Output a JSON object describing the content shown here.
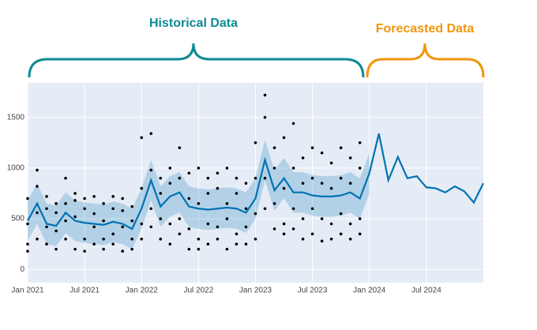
{
  "chart_data": {
    "type": "line",
    "annotations": [
      {
        "text": "Historical Data",
        "color": "#0e8a94"
      },
      {
        "text": "Forecasted Data",
        "color": "#f0960e"
      }
    ],
    "xlim": [
      "2021-01",
      "2025-01"
    ],
    "ylim": [
      -130,
      1840
    ],
    "xticks": [
      {
        "value": "2021-01",
        "label": "Jan 2021"
      },
      {
        "value": "2021-07",
        "label": "Jul 2021"
      },
      {
        "value": "2022-01",
        "label": "Jan 2022"
      },
      {
        "value": "2022-07",
        "label": "Jul 2022"
      },
      {
        "value": "2023-01",
        "label": "Jan 2023"
      },
      {
        "value": "2023-07",
        "label": "Jul 2023"
      },
      {
        "value": "2024-01",
        "label": "Jan 2024"
      },
      {
        "value": "2024-07",
        "label": "Jul 2024"
      }
    ],
    "yticks": [
      0,
      500,
      1000,
      1500
    ],
    "grid": true,
    "points_color": "#000000",
    "points": [
      {
        "x": "2021-01",
        "values": [
          250,
          700,
          450,
          180
        ]
      },
      {
        "x": "2021-02",
        "values": [
          980,
          560,
          820,
          300
        ]
      },
      {
        "x": "2021-03",
        "values": [
          600,
          250,
          420,
          720
        ]
      },
      {
        "x": "2021-04",
        "values": [
          200,
          560,
          650,
          380
        ]
      },
      {
        "x": "2021-05",
        "values": [
          900,
          300,
          650,
          480
        ]
      },
      {
        "x": "2021-06",
        "values": [
          680,
          200,
          520,
          750
        ]
      },
      {
        "x": "2021-07",
        "values": [
          300,
          600,
          180,
          700
        ]
      },
      {
        "x": "2021-08",
        "values": [
          550,
          250,
          720,
          420
        ]
      },
      {
        "x": "2021-09",
        "values": [
          650,
          200,
          480,
          300
        ]
      },
      {
        "x": "2021-10",
        "values": [
          720,
          350,
          600,
          250
        ]
      },
      {
        "x": "2021-11",
        "values": [
          580,
          180,
          700,
          420
        ]
      },
      {
        "x": "2021-12",
        "values": [
          300,
          620,
          200,
          480
        ]
      },
      {
        "x": "2022-01",
        "values": [
          1300,
          450,
          800,
          300
        ]
      },
      {
        "x": "2022-02",
        "values": [
          1340,
          600,
          980,
          420
        ]
      },
      {
        "x": "2022-03",
        "values": [
          900,
          300,
          750,
          500
        ]
      },
      {
        "x": "2022-04",
        "values": [
          1000,
          450,
          850,
          250
        ]
      },
      {
        "x": "2022-05",
        "values": [
          1200,
          500,
          900,
          350
        ]
      },
      {
        "x": "2022-06",
        "values": [
          950,
          200,
          700,
          400
        ]
      },
      {
        "x": "2022-07",
        "values": [
          1000,
          300,
          650,
          200
        ]
      },
      {
        "x": "2022-08",
        "values": [
          900,
          250,
          750,
          450
        ]
      },
      {
        "x": "2022-09",
        "values": [
          950,
          300,
          800,
          420
        ]
      },
      {
        "x": "2022-10",
        "values": [
          1000,
          200,
          650,
          500
        ]
      },
      {
        "x": "2022-11",
        "values": [
          900,
          350,
          750,
          250
        ]
      },
      {
        "x": "2022-12",
        "values": [
          850,
          250,
          600,
          420
        ]
      },
      {
        "x": "2023-01",
        "values": [
          1250,
          300,
          900,
          550
        ]
      },
      {
        "x": "2023-02",
        "values": [
          1720,
          1500,
          900,
          600
        ]
      },
      {
        "x": "2023-03",
        "values": [
          1200,
          400,
          1000,
          650
        ]
      },
      {
        "x": "2023-04",
        "values": [
          1300,
          450,
          800,
          350
        ]
      },
      {
        "x": "2023-05",
        "values": [
          1440,
          600,
          1000,
          400
        ]
      },
      {
        "x": "2023-06",
        "values": [
          1100,
          300,
          850,
          500
        ]
      },
      {
        "x": "2023-07",
        "values": [
          1200,
          350,
          900,
          600
        ]
      },
      {
        "x": "2023-08",
        "values": [
          1150,
          280,
          850,
          500
        ]
      },
      {
        "x": "2023-09",
        "values": [
          1050,
          300,
          800,
          450
        ]
      },
      {
        "x": "2023-10",
        "values": [
          1200,
          350,
          900,
          550
        ]
      },
      {
        "x": "2023-11",
        "values": [
          1100,
          300,
          850,
          450
        ]
      },
      {
        "x": "2023-12",
        "values": [
          1250,
          350,
          1000,
          500
        ]
      }
    ],
    "forecast": {
      "color": "#0072b2",
      "band_color": "#0072b2",
      "x": [
        "2021-01",
        "2021-02",
        "2021-03",
        "2021-04",
        "2021-05",
        "2021-06",
        "2021-07",
        "2021-08",
        "2021-09",
        "2021-10",
        "2021-11",
        "2021-12",
        "2022-01",
        "2022-02",
        "2022-03",
        "2022-04",
        "2022-05",
        "2022-06",
        "2022-07",
        "2022-08",
        "2022-09",
        "2022-10",
        "2022-11",
        "2022-12",
        "2023-01",
        "2023-02",
        "2023-03",
        "2023-04",
        "2023-05",
        "2023-06",
        "2023-07",
        "2023-08",
        "2023-09",
        "2023-10",
        "2023-11",
        "2023-12",
        "2024-01",
        "2024-02",
        "2024-03",
        "2024-04",
        "2024-05",
        "2024-06",
        "2024-07",
        "2024-08",
        "2024-09",
        "2024-10",
        "2024-11",
        "2024-12",
        "2025-01"
      ],
      "values": [
        480,
        650,
        450,
        430,
        560,
        480,
        460,
        450,
        440,
        470,
        450,
        400,
        600,
        880,
        620,
        720,
        760,
        620,
        600,
        590,
        600,
        610,
        600,
        560,
        700,
        1080,
        780,
        900,
        760,
        760,
        730,
        720,
        720,
        730,
        760,
        700,
        950,
        1340,
        880,
        1110,
        900,
        920,
        810,
        800,
        760,
        820,
        770,
        660,
        850
      ],
      "upper": [
        680,
        850,
        650,
        630,
        760,
        680,
        660,
        650,
        640,
        670,
        650,
        600,
        800,
        1080,
        820,
        920,
        960,
        820,
        800,
        790,
        800,
        810,
        800,
        760,
        900,
        1280,
        980,
        1100,
        960,
        960,
        930,
        920,
        920,
        930,
        960,
        900,
        1150,
        null,
        null,
        null,
        null,
        null,
        null,
        null,
        null,
        null,
        null,
        null,
        null
      ],
      "lower": [
        280,
        450,
        250,
        230,
        360,
        280,
        260,
        250,
        240,
        270,
        250,
        200,
        400,
        680,
        420,
        520,
        560,
        420,
        400,
        390,
        400,
        410,
        400,
        360,
        500,
        880,
        580,
        700,
        560,
        560,
        530,
        520,
        520,
        530,
        560,
        500,
        750,
        null,
        null,
        null,
        null,
        null,
        null,
        null,
        null,
        null,
        null,
        null,
        null
      ]
    }
  }
}
